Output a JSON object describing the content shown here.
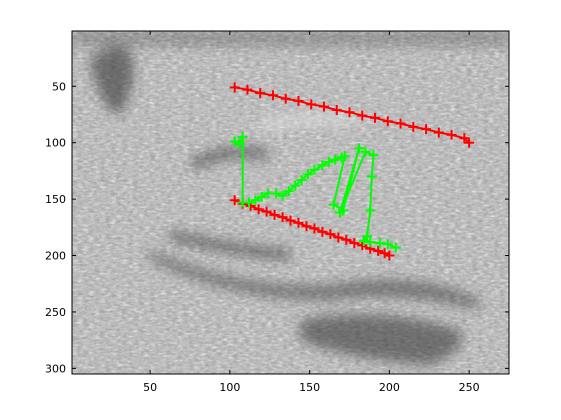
{
  "chart_data": {
    "type": "scatter",
    "title": "",
    "xlabel": "",
    "ylabel": "",
    "xlim": [
      1,
      275
    ],
    "ylim": [
      305,
      1
    ],
    "y_axis_reversed": true,
    "grid": false,
    "legend": "none",
    "background": "grayscale ultrasound image",
    "x_ticks": [
      50,
      100,
      150,
      200,
      250
    ],
    "y_ticks": [
      50,
      100,
      150,
      200,
      250,
      300
    ],
    "series": [
      {
        "color": "#ff0000",
        "marker": "+",
        "line": true,
        "segments": [
          {
            "x": [
              103,
              111,
              119,
              127,
              135,
              143,
              151,
              159,
              167,
              175,
              183,
              191,
              199,
              207,
              215,
              223,
              231,
              239,
              247,
              250
            ],
            "y": [
              51,
              53,
              56,
              58,
              61,
              63,
              66,
              68,
              71,
              73,
              76,
              78,
              81,
              83,
              86,
              88,
              91,
              93,
              96,
              100
            ]
          },
          {
            "x": [
              103,
              108,
              113,
              118,
              123,
              128,
              133,
              138,
              143,
              148,
              153,
              158,
              163,
              168,
              173,
              178,
              183,
              188,
              193,
              197,
              200
            ],
            "y": [
              151,
              154,
              156,
              159,
              161,
              164,
              166,
              169,
              171,
              174,
              176,
              179,
              181,
              184,
              186,
              189,
              191,
              194,
              196,
              198,
              200
            ]
          }
        ]
      },
      {
        "color": "#00ff00",
        "marker": "+",
        "line": true,
        "segments": [
          {
            "x": [
              103,
              106,
              108,
              108,
              112,
              116,
              120,
              124,
              129,
              133,
              137,
              141,
              145,
              149,
              153,
              158,
              162,
              166,
              170,
              172,
              165,
              171,
              181,
              169,
              185,
              190,
              189,
              188,
              186,
              184,
              188,
              194,
              199,
              204
            ],
            "y": [
              99,
              101,
              95,
              153,
              153,
              151,
              148,
              145,
              145,
              147,
              143,
              138,
              133,
              128,
              124,
              120,
              117,
              115,
              113,
              112,
              155,
              160,
              105,
              162,
              108,
              111,
              130,
              160,
              183,
              187,
              188,
              189,
              190,
              193
            ]
          }
        ]
      }
    ]
  }
}
